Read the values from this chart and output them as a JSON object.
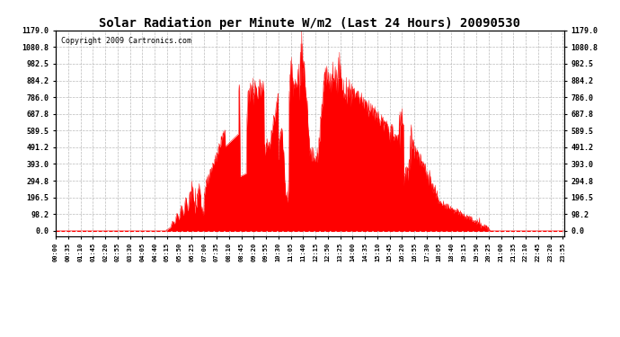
{
  "title": "Solar Radiation per Minute W/m2 (Last 24 Hours) 20090530",
  "copyright": "Copyright 2009 Cartronics.com",
  "ymax": 1179.0,
  "yticks": [
    0.0,
    98.2,
    196.5,
    294.8,
    393.0,
    491.2,
    589.5,
    687.8,
    786.0,
    884.2,
    982.5,
    1080.8,
    1179.0
  ],
  "fill_color": "#FF0000",
  "line_color": "#FF0000",
  "dashed_line_color": "#FF0000",
  "bg_color": "#FFFFFF",
  "grid_color": "#AAAAAA",
  "title_fontsize": 10,
  "copyright_fontsize": 6,
  "tick_fontsize": 5,
  "ytick_fontsize": 6
}
